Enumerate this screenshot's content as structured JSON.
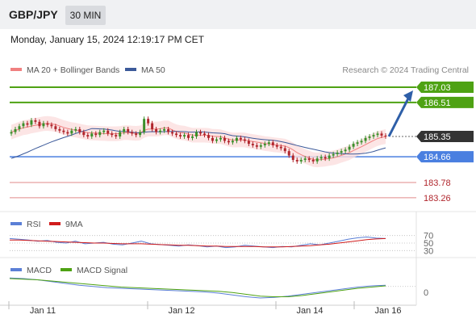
{
  "header": {
    "pair": "GBP/JPY",
    "timeframe": "30 MIN"
  },
  "datetime": "Monday, January 15, 2024 12:19:17 PM CET",
  "legend": {
    "ma20": "MA 20 + Bollinger Bands",
    "ma50": "MA 50",
    "credit": "Research © 2024 Trading Central"
  },
  "rsi_legend": {
    "rsi": "RSI",
    "ma9": "9MA"
  },
  "macd_legend": {
    "macd": "MACD",
    "signal": "MACD Signal"
  },
  "colors": {
    "up": "#3a8f2a",
    "down": "#b0252c",
    "ma20": "#f08080",
    "ma50": "#3c5a9a",
    "green_line": "#4ea213",
    "blue_line": "#4a7fe0",
    "red_line": "#e08a8a",
    "arrow": "#2e5fa8",
    "rsi": "#5b7fd6",
    "ma9": "#d01c1c",
    "macd": "#5b7fd6",
    "macd_signal": "#4ea213"
  },
  "chart_data": [
    {
      "type": "candlestick",
      "title": "GBP/JPY",
      "ylim": [
        182.9,
        187.8
      ],
      "x_ticks": [
        "Jan 11",
        "Jan 12",
        "Jan 14",
        "Jan 16"
      ],
      "levels": [
        {
          "value": 187.03,
          "label": "187.03",
          "style": "resistance"
        },
        {
          "value": 186.51,
          "label": "186.51",
          "style": "resistance"
        },
        {
          "value": 185.35,
          "label": "185.35",
          "style": "current"
        },
        {
          "value": 184.66,
          "label": "184.66",
          "style": "support"
        },
        {
          "value": 183.78,
          "label": "183.78",
          "style": "minor"
        },
        {
          "value": 183.26,
          "label": "183.26",
          "style": "minor"
        }
      ],
      "close_path": [
        185.5,
        185.6,
        185.7,
        185.8,
        185.75,
        185.9,
        185.85,
        185.7,
        185.8,
        185.75,
        185.7,
        185.6,
        185.55,
        185.5,
        185.45,
        185.55,
        185.6,
        185.5,
        185.4,
        185.35,
        185.45,
        185.4,
        185.5,
        185.55,
        185.45,
        185.4,
        185.35,
        185.5,
        185.6,
        185.5,
        185.45,
        185.4,
        185.5,
        185.95,
        185.8,
        185.6,
        185.5,
        185.55,
        185.6,
        185.5,
        185.45,
        185.4,
        185.35,
        185.4,
        185.3,
        185.35,
        185.5,
        185.45,
        185.4,
        185.3,
        185.2,
        185.25,
        185.3,
        185.2,
        185.15,
        185.2,
        185.3,
        185.25,
        185.2,
        185.1,
        185.05,
        185.0,
        185.05,
        185.1,
        185.15,
        185.05,
        185.0,
        184.95,
        184.85,
        184.7,
        184.55,
        184.5,
        184.55,
        184.6,
        184.55,
        184.5,
        184.6,
        184.65,
        184.6,
        184.7,
        184.75,
        184.8,
        184.85,
        184.9,
        185.0,
        185.1,
        185.15,
        185.2,
        185.3,
        185.35,
        185.4,
        185.45,
        185.38,
        185.35
      ],
      "annotation": {
        "type": "arrow",
        "target": 187.03
      }
    },
    {
      "type": "line",
      "name": "RSI",
      "ylim": [
        20,
        80
      ],
      "y_ticks": [
        70,
        50,
        30
      ],
      "series": [
        {
          "name": "RSI",
          "values": [
            62,
            60,
            58,
            55,
            57,
            52,
            50,
            55,
            48,
            50,
            52,
            47,
            45,
            50,
            55,
            48,
            46,
            44,
            42,
            45,
            43,
            40,
            42,
            38,
            40,
            44,
            42,
            40,
            38,
            41,
            40,
            44,
            48,
            45,
            50,
            55,
            60,
            64,
            66,
            63,
            62
          ]
        },
        {
          "name": "9MA",
          "values": [
            58,
            58,
            57,
            56,
            55,
            54,
            53,
            52,
            51,
            50,
            50,
            49,
            48,
            48,
            48,
            47,
            46,
            45,
            44,
            44,
            43,
            42,
            42,
            41,
            41,
            41,
            41,
            40,
            40,
            40,
            41,
            42,
            43,
            45,
            47,
            50,
            53,
            56,
            59,
            61,
            62
          ]
        }
      ]
    },
    {
      "type": "line",
      "name": "MACD",
      "y_ticks": [
        0
      ],
      "series": [
        {
          "name": "MACD",
          "values": [
            0.22,
            0.21,
            0.19,
            0.16,
            0.13,
            0.1,
            0.08,
            0.06,
            0.05,
            0.04,
            0.03,
            0.02,
            0.01,
            0.0,
            -0.01,
            -0.03,
            -0.06,
            -0.09,
            -0.11,
            -0.1,
            -0.08,
            -0.05,
            -0.02,
            0.01,
            0.04,
            0.07,
            0.09,
            0.1
          ]
        },
        {
          "name": "MACD Signal",
          "values": [
            0.21,
            0.2,
            0.19,
            0.17,
            0.15,
            0.13,
            0.11,
            0.09,
            0.07,
            0.06,
            0.05,
            0.04,
            0.03,
            0.02,
            0.01,
            0.0,
            -0.02,
            -0.05,
            -0.08,
            -0.09,
            -0.09,
            -0.07,
            -0.04,
            -0.01,
            0.02,
            0.05,
            0.07,
            0.09
          ]
        }
      ]
    }
  ]
}
